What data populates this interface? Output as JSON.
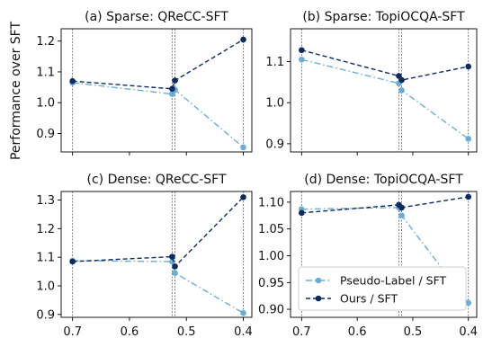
{
  "figure": {
    "ylabel": "Performance over SFT",
    "colors": {
      "pseudo": "#6aaed6",
      "ours": "#0d2b5e"
    }
  },
  "legend": {
    "placement": "lower-right of panel (d)",
    "entries": [
      {
        "key": "pseudo",
        "label": "Pseudo-Label / SFT"
      },
      {
        "key": "ours",
        "label": "Ours / SFT"
      }
    ]
  },
  "chart_data": [
    {
      "type": "line",
      "title": "(a) Sparse: QReCC-SFT",
      "x_reversed": true,
      "xlim": [
        0.72,
        0.385
      ],
      "xticks": [
        0.7,
        0.6,
        0.5,
        0.4
      ],
      "show_xticklabels": false,
      "ylim": [
        0.84,
        1.24
      ],
      "yticks": [
        0.9,
        1.0,
        1.1,
        1.2
      ],
      "ytick_labels": [
        "0.9",
        "1.0",
        "1.1",
        "1.2"
      ],
      "vlines": [
        0.7,
        0.525,
        0.52,
        0.4
      ],
      "series": [
        {
          "key": "pseudo",
          "name": "Pseudo-Label / SFT",
          "style": "dashdot",
          "x": [
            0.7,
            0.525,
            0.52,
            0.4
          ],
          "y": [
            1.065,
            1.028,
            1.042,
            0.855
          ]
        },
        {
          "key": "ours",
          "name": "Ours / SFT",
          "style": "dashed",
          "x": [
            0.7,
            0.525,
            0.52,
            0.4
          ],
          "y": [
            1.07,
            1.045,
            1.072,
            1.205
          ]
        }
      ]
    },
    {
      "type": "line",
      "title": "(b) Sparse: TopiOCQA-SFT",
      "x_reversed": true,
      "xlim": [
        0.72,
        0.385
      ],
      "xticks": [
        0.7,
        0.6,
        0.5,
        0.4
      ],
      "show_xticklabels": false,
      "ylim": [
        0.88,
        1.18
      ],
      "yticks": [
        0.9,
        1.0,
        1.1
      ],
      "ytick_labels": [
        "0.9",
        "1.0",
        "1.1"
      ],
      "vlines": [
        0.7,
        0.525,
        0.52,
        0.4
      ],
      "series": [
        {
          "key": "pseudo",
          "name": "Pseudo-Label / SFT",
          "style": "dashdot",
          "x": [
            0.7,
            0.525,
            0.52,
            0.4
          ],
          "y": [
            1.105,
            1.047,
            1.03,
            0.912
          ]
        },
        {
          "key": "ours",
          "name": "Ours / SFT",
          "style": "dashed",
          "x": [
            0.7,
            0.525,
            0.52,
            0.4
          ],
          "y": [
            1.128,
            1.065,
            1.055,
            1.088
          ]
        }
      ]
    },
    {
      "type": "line",
      "title": "(c) Dense: QReCC-SFT",
      "x_reversed": true,
      "xlim": [
        0.72,
        0.385
      ],
      "xticks": [
        0.7,
        0.6,
        0.5,
        0.4
      ],
      "show_xticklabels": true,
      "xtick_labels": [
        "0.7",
        "0.6",
        "0.5",
        "0.4"
      ],
      "ylim": [
        0.89,
        1.33
      ],
      "yticks": [
        0.9,
        1.0,
        1.1,
        1.2,
        1.3
      ],
      "ytick_labels": [
        "0.9",
        "1.0",
        "1.1",
        "1.2",
        "1.3"
      ],
      "vlines": [
        0.7,
        0.525,
        0.52,
        0.4
      ],
      "series": [
        {
          "key": "pseudo",
          "name": "Pseudo-Label / SFT",
          "style": "dashdot",
          "x": [
            0.7,
            0.525,
            0.52,
            0.4
          ],
          "y": [
            1.088,
            1.085,
            1.045,
            0.905
          ]
        },
        {
          "key": "ours",
          "name": "Ours / SFT",
          "style": "dashed",
          "x": [
            0.7,
            0.525,
            0.52,
            0.4
          ],
          "y": [
            1.085,
            1.102,
            1.068,
            1.31
          ]
        }
      ]
    },
    {
      "type": "line",
      "title": "(d) Dense: TopiOCQA-SFT",
      "x_reversed": true,
      "xlim": [
        0.72,
        0.385
      ],
      "xticks": [
        0.7,
        0.6,
        0.5,
        0.4
      ],
      "show_xticklabels": true,
      "xtick_labels": [
        "0.7",
        "0.6",
        "0.5",
        "0.4"
      ],
      "ylim": [
        0.885,
        1.12
      ],
      "yticks": [
        0.9,
        0.95,
        1.0,
        1.05,
        1.1
      ],
      "ytick_labels": [
        "0.90",
        "0.95",
        "1.00",
        "1.05",
        "1.10"
      ],
      "vlines": [
        0.7,
        0.525,
        0.52,
        0.4
      ],
      "series": [
        {
          "key": "pseudo",
          "name": "Pseudo-Label / SFT",
          "style": "dashdot",
          "x": [
            0.7,
            0.525,
            0.52,
            0.4
          ],
          "y": [
            1.087,
            1.09,
            1.075,
            0.912
          ]
        },
        {
          "key": "ours",
          "name": "Ours / SFT",
          "style": "dashed",
          "x": [
            0.7,
            0.525,
            0.52,
            0.4
          ],
          "y": [
            1.08,
            1.095,
            1.09,
            1.11
          ]
        }
      ]
    }
  ]
}
